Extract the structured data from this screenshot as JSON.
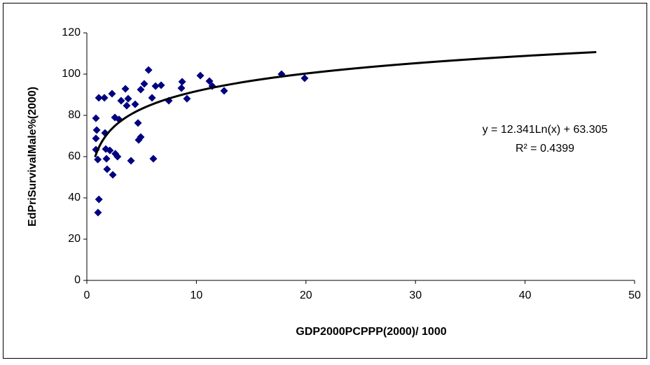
{
  "chart_data": {
    "type": "scatter",
    "x_label": "GDP2000PCPPP(2000)/ 1000",
    "y_label": "EdPriSurvivalMale%(2000)",
    "xlim": [
      0,
      50
    ],
    "xticks": [
      0,
      10,
      20,
      30,
      40,
      50
    ],
    "ylim": [
      0,
      120
    ],
    "yticks": [
      0,
      20,
      40,
      60,
      80,
      100,
      120
    ],
    "grid": false,
    "series": [
      {
        "color": "#000080",
        "x": [
          1.02,
          1.1,
          0.83,
          0.9,
          0.83,
          0.83,
          1.0,
          1.09,
          1.6,
          1.66,
          1.73,
          1.79,
          1.85,
          2.1,
          2.37,
          2.3,
          2.56,
          2.6,
          2.8,
          2.94,
          3.13,
          3.52,
          3.64,
          3.77,
          4.03,
          4.41,
          4.67,
          4.73,
          4.92,
          4.92,
          5.24,
          5.63,
          5.95,
          6.07,
          6.27,
          6.78,
          7.48,
          8.63,
          8.7,
          9.14,
          10.36,
          11.19,
          11.45,
          12.53,
          17.77,
          19.88
        ],
        "values": [
          32.9,
          39.3,
          78.6,
          72.9,
          68.8,
          63.4,
          58.6,
          88.5,
          88.5,
          71.5,
          63.7,
          59,
          53.9,
          63,
          51.2,
          90.5,
          79,
          61.4,
          60,
          78,
          87.1,
          92.9,
          84.7,
          88.1,
          58,
          85.4,
          76.3,
          68.1,
          69.5,
          92.5,
          95.3,
          102,
          88.5,
          59,
          94.2,
          94.6,
          87.1,
          93.2,
          96.3,
          88.1,
          99.3,
          96.6,
          94.2,
          91.9,
          100,
          98
        ]
      }
    ],
    "trendline": {
      "type": "log",
      "coefficients": [
        12.341,
        63.305
      ],
      "x_range": [
        0.75,
        46.5
      ],
      "color": "#000000",
      "equation": "y = 12.341Ln(x) + 63.305",
      "r_squared": "R² = 0.4399"
    }
  }
}
